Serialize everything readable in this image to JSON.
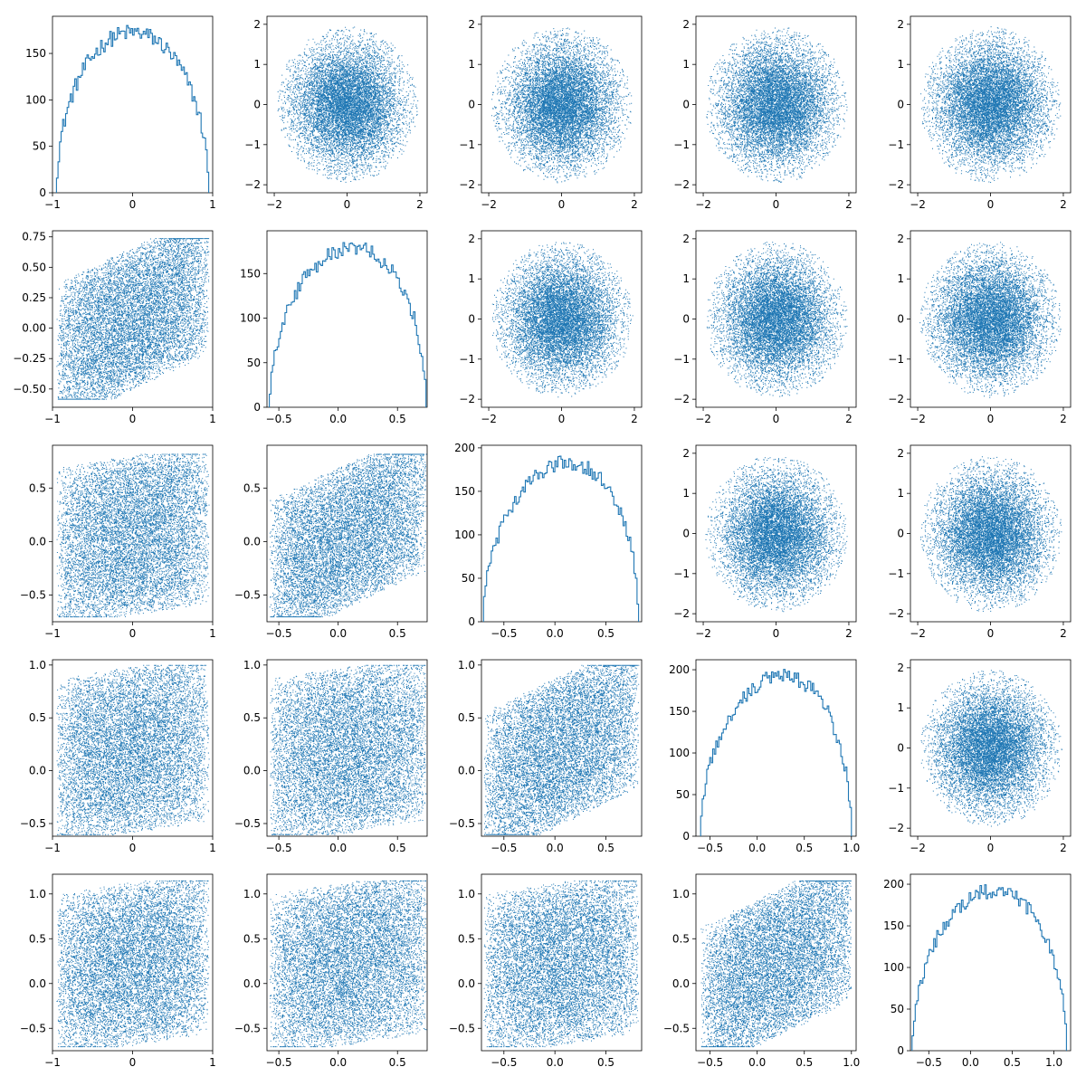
{
  "chart_data": {
    "type": "pairplot",
    "grid": {
      "rows": 5,
      "cols": 5
    },
    "color": "#1f77b4",
    "variables": [
      {
        "name": "",
        "range": [
          -1,
          1
        ],
        "ticks": [
          -1,
          0,
          1
        ],
        "tick_labels": [
          "−1",
          "0",
          "1"
        ],
        "support": [
          -0.95,
          0.95
        ],
        "mean": 0,
        "skew": 0
      },
      {
        "name": "",
        "range": [
          -0.6,
          0.75
        ],
        "ticks": [
          -0.5,
          0,
          0.5
        ],
        "tick_labels": [
          "−0.5",
          "0.0",
          "0.5"
        ],
        "support": [
          -0.58,
          0.74
        ],
        "mean": 0.1,
        "skew": 0.1
      },
      {
        "name": "",
        "range": [
          -0.72,
          0.85
        ],
        "ticks": [
          -0.5,
          0,
          0.5
        ],
        "tick_labels": [
          "−0.5",
          "0.0",
          "0.5"
        ],
        "support": [
          -0.7,
          0.82
        ],
        "mean": 0.15,
        "skew": 0.15
      },
      {
        "name": "",
        "range": [
          -0.65,
          1.05
        ],
        "ticks": [
          -0.5,
          0,
          0.5,
          1
        ],
        "tick_labels": [
          "−0.5",
          "0.0",
          "0.5",
          "1.0"
        ],
        "support": [
          -0.6,
          1.0
        ],
        "mean": 0.2,
        "skew": 0.15
      },
      {
        "name": "",
        "range": [
          -0.72,
          1.2
        ],
        "ticks": [
          -0.5,
          0,
          0.5,
          1
        ],
        "tick_labels": [
          "−0.5",
          "0.0",
          "0.5",
          "1.0"
        ],
        "support": [
          -0.7,
          1.15
        ],
        "mean": 0.2,
        "skew": 0.1
      }
    ],
    "normal_axis": {
      "range": [
        -2.2,
        2.2
      ],
      "ticks": [
        -2,
        0,
        2
      ],
      "tick_labels": [
        "−2",
        "0",
        "2"
      ],
      "y_ticks": [
        -2,
        -1,
        0,
        1,
        2
      ],
      "y_tick_labels": [
        "−2",
        "−1",
        "0",
        "1",
        "2"
      ],
      "radius": 1.95
    },
    "y_axes": {
      "row1_scatter": {
        "range": [
          -0.65,
          0.8
        ],
        "ticks": [
          -0.5,
          -0.25,
          0,
          0.25,
          0.5,
          0.75
        ],
        "tick_labels": [
          "−0.50",
          "−0.25",
          "0.00",
          "0.25",
          "0.50",
          "0.75"
        ]
      },
      "row2_scatter": {
        "range": [
          -0.75,
          0.9
        ],
        "ticks": [
          -0.5,
          0,
          0.5
        ],
        "tick_labels": [
          "−0.5",
          "0.0",
          "0.5"
        ]
      },
      "row3_scatter": {
        "range": [
          -0.62,
          1.05
        ],
        "ticks": [
          -0.5,
          0,
          0.5,
          1
        ],
        "tick_labels": [
          "−0.5",
          "0.0",
          "0.5",
          "1.0"
        ]
      },
      "row4_scatter": {
        "range": [
          -0.75,
          1.22
        ],
        "ticks": [
          -0.5,
          0,
          0.5,
          1
        ],
        "tick_labels": [
          "−0.5",
          "0.0",
          "0.5",
          "1.0"
        ]
      }
    },
    "histograms": [
      {
        "row": 0,
        "ylim": [
          0,
          190
        ],
        "y_ticks": [
          0,
          50,
          100,
          150
        ],
        "peak": 180,
        "range": [
          -0.95,
          0.95
        ],
        "bins": 100
      },
      {
        "row": 1,
        "ylim": [
          0,
          198
        ],
        "y_ticks": [
          0,
          50,
          100,
          150
        ],
        "peak": 185,
        "range": [
          -0.58,
          0.74
        ],
        "bins": 100
      },
      {
        "row": 2,
        "ylim": [
          0,
          203
        ],
        "y_ticks": [
          0,
          50,
          100,
          150,
          200
        ],
        "peak": 190,
        "range": [
          -0.7,
          0.82
        ],
        "bins": 100
      },
      {
        "row": 3,
        "ylim": [
          0,
          212
        ],
        "y_ticks": [
          0,
          50,
          100,
          150,
          200
        ],
        "peak": 200,
        "range": [
          -0.6,
          1.0
        ],
        "bins": 100
      },
      {
        "row": 4,
        "ylim": [
          0,
          212
        ],
        "y_ticks": [
          0,
          50,
          100,
          150,
          200
        ],
        "peak": 200,
        "range": [
          -0.7,
          1.15
        ],
        "bins": 100
      }
    ],
    "points_per_scatter": 10000,
    "grid_on": false,
    "legend": "none"
  }
}
